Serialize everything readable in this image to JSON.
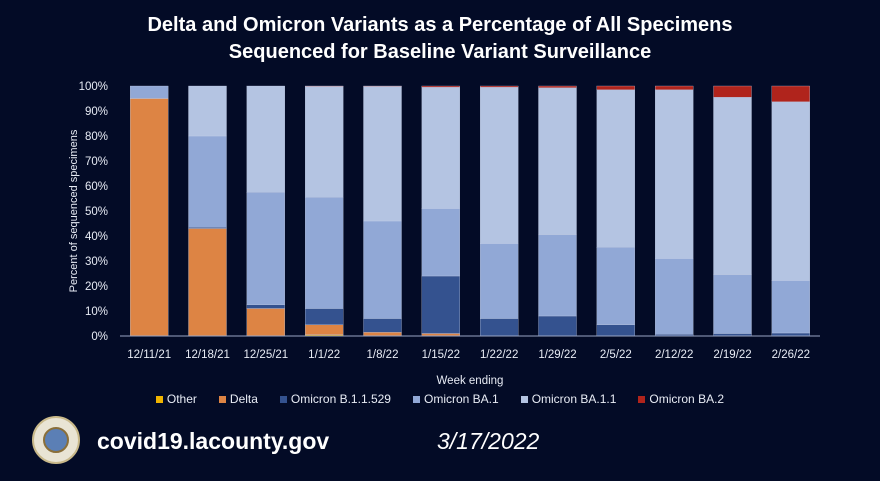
{
  "chart_data": {
    "type": "bar",
    "stacked": true,
    "title": "Delta and Omicron Variants as a Percentage of All Specimens Sequenced for Baseline Variant Surveillance",
    "title_lines": [
      "Delta and Omicron Variants as a Percentage of All Specimens",
      "Sequenced for Baseline Variant Surveillance"
    ],
    "xlabel": "Week ending",
    "ylabel": "Percent of sequenced specimens",
    "ylim": [
      0,
      100
    ],
    "yticks": [
      "0%",
      "10%",
      "20%",
      "30%",
      "40%",
      "50%",
      "60%",
      "70%",
      "80%",
      "90%",
      "100%"
    ],
    "grid": false,
    "legend_position": "bottom",
    "categories": [
      "12/11/21",
      "12/18/21",
      "12/25/21",
      "1/1/22",
      "1/8/22",
      "1/15/22",
      "1/22/22",
      "1/29/22",
      "2/5/22",
      "2/12/22",
      "2/19/22",
      "2/26/22"
    ],
    "series": [
      {
        "name": "Other",
        "color": "#f0b400",
        "values": [
          0,
          0,
          0,
          0.5,
          0,
          0,
          0,
          0,
          0,
          0,
          0,
          0
        ]
      },
      {
        "name": "Delta",
        "color": "#dd8444",
        "values": [
          95,
          43,
          11,
          4,
          1.5,
          1,
          0,
          0,
          0,
          0,
          0,
          0
        ]
      },
      {
        "name": "Omicron B.1.1.529",
        "color": "#34528f",
        "values": [
          0,
          0.5,
          1.5,
          6.5,
          5.5,
          23,
          7,
          8,
          4.5,
          0.7,
          1,
          1.2
        ]
      },
      {
        "name": "Omicron BA.1",
        "color": "#91a8d6",
        "values": [
          5,
          36.5,
          45,
          44.5,
          39,
          27,
          30,
          32.5,
          31,
          30.3,
          23.5,
          21
        ]
      },
      {
        "name": "Omicron BA.1.1",
        "color": "#b4c4e2",
        "values": [
          0,
          20,
          42.5,
          44.3,
          53.8,
          48.5,
          62.5,
          58.8,
          63,
          67.5,
          71,
          71.5
        ]
      },
      {
        "name": "Omicron BA.2",
        "color": "#b0241c",
        "values": [
          0,
          0,
          0,
          0.2,
          0.2,
          0.5,
          0.5,
          0.7,
          1.5,
          1.5,
          4.5,
          6.3
        ]
      }
    ]
  },
  "footer": {
    "url": "covid19.lacounty.gov",
    "date": "3/17/2022",
    "seal_text": "County of Los Angeles"
  }
}
